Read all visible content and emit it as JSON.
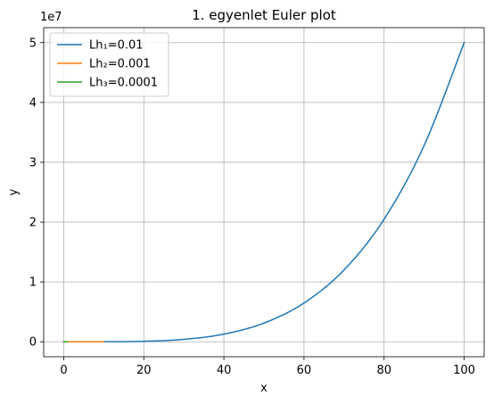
{
  "chart_data": {
    "type": "line",
    "title": "1. egyenlet Euler plot",
    "xlabel": "x",
    "ylabel": "y",
    "y_offset_text": "1e7",
    "xlim": [
      -5,
      105
    ],
    "ylim": [
      -2500000,
      52500000
    ],
    "x_ticks": [
      0,
      20,
      40,
      60,
      80,
      100
    ],
    "x_tick_labels": [
      "0",
      "20",
      "40",
      "60",
      "80",
      "100"
    ],
    "y_ticks": [
      0,
      10000000,
      20000000,
      30000000,
      40000000,
      50000000
    ],
    "y_tick_labels": [
      "0",
      "1",
      "2",
      "3",
      "4",
      "5"
    ],
    "grid": true,
    "legend_position": "upper-left",
    "series": [
      {
        "name": "Lh₁=0.01",
        "color": "#1f77b4",
        "x": [
          0,
          10,
          20,
          30,
          40,
          50,
          60,
          70,
          80,
          90,
          100
        ],
        "y": [
          0,
          5000,
          80000,
          405000,
          1280000,
          3125000,
          6480000,
          12005000,
          20480000,
          32805000,
          50000000
        ]
      },
      {
        "name": "Lh₂=0.001",
        "color": "#ff7f0e",
        "x": [
          0,
          2,
          4,
          6,
          8,
          10
        ],
        "y": [
          0,
          8,
          128,
          648,
          2048,
          5000
        ]
      },
      {
        "name": "Lh₃=0.0001",
        "color": "#2ca02c",
        "x": [
          0,
          0.25,
          0.5,
          0.75,
          1
        ],
        "y": [
          0,
          0.002,
          0.03,
          0.16,
          0.5
        ]
      }
    ]
  }
}
